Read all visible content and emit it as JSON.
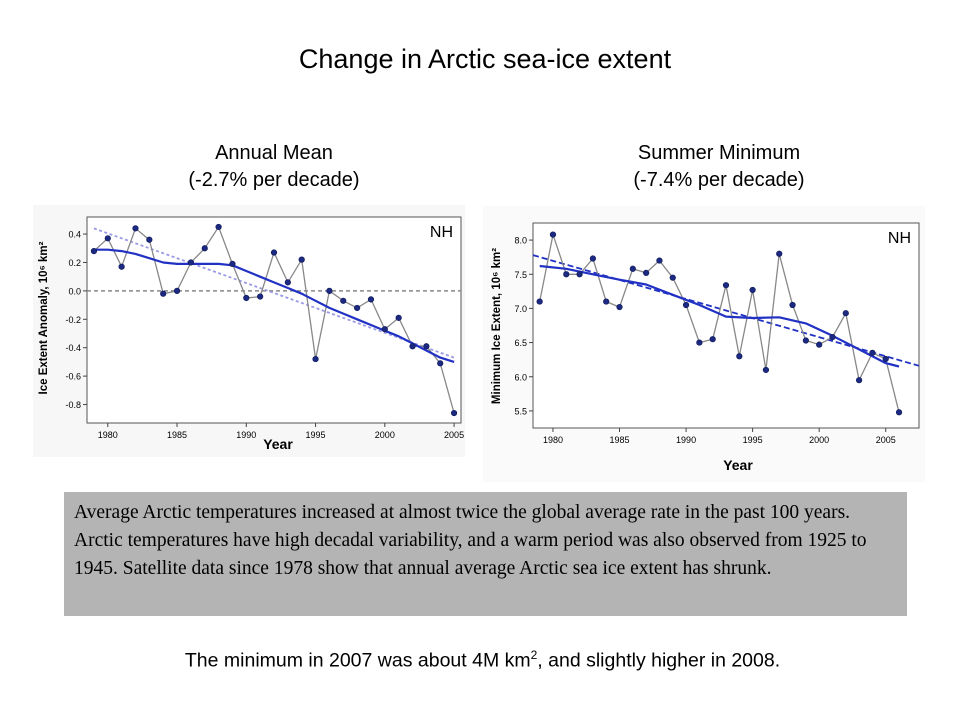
{
  "title": "Change in Arctic sea-ice extent",
  "panels": {
    "left": {
      "line1": "Annual Mean",
      "line2": "(-2.7% per decade)"
    },
    "right": {
      "line1": "Summer Minimum",
      "line2": "(-7.4% per decade)"
    }
  },
  "note": "Average Arctic temperatures increased at almost twice the global average rate in the past 100 years. Arctic temperatures have high decadal variability, and a warm period was also observed from 1925 to 1945. Satellite data since 1978 show that annual average Arctic sea ice extent has shrunk.",
  "footer": {
    "before": "The minimum in 2007 was about 4M km",
    "sup": "2",
    "after": ", and slightly higher in 2008."
  },
  "colors": {
    "series": "#1f2a9a",
    "points": "#1b2a80",
    "connector": "#888888",
    "smooth": "#2131c4",
    "trend_left": "#9a9ae6",
    "trend_right": "#2131c4",
    "zero_line": "#888888",
    "note_bg": "#b4b4b4"
  },
  "chart_data": [
    {
      "type": "line",
      "region_label": "NH",
      "xlabel": "Year",
      "ylabel": "Ice Extent Anomaly, 10⁶ km²",
      "xlim": [
        1978.5,
        2005.5
      ],
      "ylim": [
        -0.93,
        0.52
      ],
      "x_ticks": [
        1980,
        1985,
        1990,
        1995,
        2000,
        2005
      ],
      "y_ticks": [
        "0.4",
        "0.2",
        "0.0",
        "-0.2",
        "-0.4",
        "-0.6",
        "-0.8"
      ],
      "zero_line": 0.0,
      "series": [
        {
          "x": [
            1979,
            1980,
            1981,
            1982,
            1983,
            1984,
            1985,
            1986,
            1987,
            1988,
            1989,
            1990,
            1991,
            1992,
            1993,
            1994,
            1995,
            1996,
            1997,
            1998,
            1999,
            2000,
            2001,
            2002,
            2003,
            2004,
            2005
          ],
          "values": [
            0.28,
            0.37,
            0.17,
            0.44,
            0.36,
            -0.02,
            0.0,
            0.2,
            0.3,
            0.45,
            0.19,
            -0.05,
            -0.04,
            0.27,
            0.06,
            0.22,
            -0.48,
            0.0,
            -0.07,
            -0.12,
            -0.06,
            -0.27,
            -0.19,
            -0.39,
            -0.39,
            -0.51,
            -0.86
          ]
        },
        {
          "x": [
            1979,
            1980,
            1981,
            1982,
            1983,
            1984,
            1985,
            1986,
            1987,
            1988,
            1989,
            1990,
            1991,
            1992,
            1993,
            1994,
            1995,
            1996,
            1997,
            1998,
            1999,
            2000,
            2001,
            2002,
            2003,
            2004,
            2005
          ],
          "values": [
            0.29,
            0.29,
            0.28,
            0.26,
            0.23,
            0.2,
            0.19,
            0.19,
            0.19,
            0.19,
            0.18,
            0.14,
            0.1,
            0.06,
            0.02,
            -0.02,
            -0.07,
            -0.12,
            -0.16,
            -0.2,
            -0.24,
            -0.28,
            -0.32,
            -0.37,
            -0.42,
            -0.47,
            -0.5
          ]
        },
        {
          "x": [
            1979,
            2005
          ],
          "values": [
            0.44,
            -0.47
          ]
        }
      ]
    },
    {
      "type": "line",
      "region_label": "NH",
      "xlabel": "Year",
      "ylabel": "Minimum Ice Extent, 10⁶ km²",
      "xlim": [
        1978.5,
        2007.5
      ],
      "ylim": [
        5.25,
        8.25
      ],
      "x_ticks": [
        1980,
        1985,
        1990,
        1995,
        2000,
        2005
      ],
      "y_ticks": [
        "8.0",
        "7.5",
        "7.0",
        "6.5",
        "6.0",
        "5.5"
      ],
      "series": [
        {
          "x": [
            1979,
            1980,
            1981,
            1982,
            1983,
            1984,
            1985,
            1986,
            1987,
            1988,
            1989,
            1990,
            1991,
            1992,
            1993,
            1994,
            1995,
            1996,
            1997,
            1998,
            1999,
            2000,
            2001,
            2002,
            2003,
            2004,
            2005,
            2006
          ],
          "values": [
            7.1,
            8.08,
            7.5,
            7.5,
            7.73,
            7.1,
            7.02,
            7.58,
            7.52,
            7.7,
            7.45,
            7.05,
            6.5,
            6.55,
            7.34,
            6.3,
            7.27,
            6.1,
            7.8,
            7.05,
            6.53,
            6.47,
            6.58,
            6.93,
            5.95,
            6.35,
            6.26,
            5.48
          ]
        },
        {
          "x": [
            1979,
            1981,
            1983,
            1985,
            1987,
            1989,
            1991,
            1993,
            1995,
            1997,
            1999,
            2001,
            2003,
            2005,
            2006
          ],
          "values": [
            7.62,
            7.58,
            7.5,
            7.42,
            7.35,
            7.2,
            7.05,
            6.88,
            6.86,
            6.87,
            6.78,
            6.6,
            6.4,
            6.2,
            6.15
          ]
        },
        {
          "x": [
            1978.5,
            2007.5
          ],
          "values": [
            7.78,
            6.16
          ]
        }
      ]
    }
  ]
}
